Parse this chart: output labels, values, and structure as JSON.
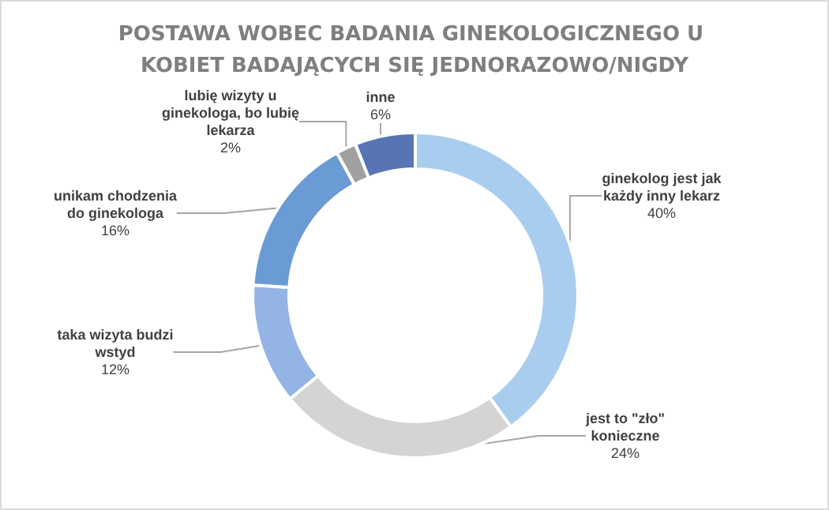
{
  "chart_data": {
    "type": "donut",
    "title": "POSTAWA WOBEC BADANIA GINEKOLOGICZNEGO U KOBIET BADAJĄCYCH SIĘ JEDNORAZOWO/NIGDY",
    "categories": [
      "ginekolog jest jak każdy inny lekarz",
      "jest to \"zło\" konieczne",
      "taka wizyta budzi wstyd",
      "unikam chodzenia do ginekologa",
      "lubię wizyty u ginekologa, bo lubię lekarza",
      "inne"
    ],
    "values": [
      40,
      24,
      12,
      16,
      2,
      6
    ],
    "value_labels": [
      "40%",
      "24%",
      "12%",
      "16%",
      "2%",
      "6%"
    ],
    "colors": [
      "#a9cdef",
      "#d4d4d4",
      "#94b4e6",
      "#6a9bd4",
      "#a0a0a0",
      "#5774b4"
    ],
    "legend": false
  }
}
